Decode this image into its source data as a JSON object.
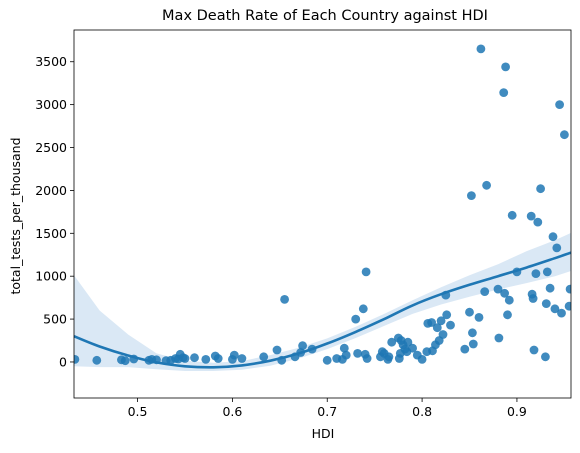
{
  "chart_data": {
    "type": "scatter",
    "title": "Max Death Rate of Each Country against HDI",
    "xlabel": "HDI",
    "ylabel": "total_tests_per_thousand",
    "xlim": [
      0.433,
      0.957
    ],
    "ylim": [
      -420,
      3870
    ],
    "xticks": [
      0.5,
      0.6,
      0.7,
      0.8,
      0.9
    ],
    "xtick_labels": [
      "0.5",
      "0.6",
      "0.7",
      "0.8",
      "0.9"
    ],
    "yticks": [
      0,
      500,
      1000,
      1500,
      2000,
      2500,
      3000,
      3500
    ],
    "ytick_labels": [
      "0",
      "500",
      "1000",
      "1500",
      "2000",
      "2500",
      "3000",
      "3500"
    ],
    "grid": false,
    "colors": {
      "points": "#1f77b4",
      "fit_line": "#1f77b4",
      "confidence_band": "#c6dbef"
    },
    "points": {
      "x": [
        0.434,
        0.457,
        0.483,
        0.487,
        0.496,
        0.512,
        0.515,
        0.52,
        0.53,
        0.535,
        0.54,
        0.543,
        0.545,
        0.548,
        0.55,
        0.56,
        0.572,
        0.582,
        0.585,
        0.6,
        0.602,
        0.61,
        0.633,
        0.647,
        0.652,
        0.655,
        0.666,
        0.672,
        0.674,
        0.684,
        0.7,
        0.71,
        0.716,
        0.718,
        0.72,
        0.73,
        0.732,
        0.738,
        0.74,
        0.741,
        0.742,
        0.756,
        0.758,
        0.76,
        0.764,
        0.765,
        0.768,
        0.775,
        0.776,
        0.777,
        0.778,
        0.78,
        0.782,
        0.784,
        0.785,
        0.79,
        0.795,
        0.8,
        0.805,
        0.806,
        0.81,
        0.811,
        0.814,
        0.816,
        0.818,
        0.82,
        0.822,
        0.825,
        0.826,
        0.83,
        0.845,
        0.85,
        0.852,
        0.853,
        0.854,
        0.86,
        0.862,
        0.866,
        0.868,
        0.88,
        0.881,
        0.886,
        0.887,
        0.888,
        0.89,
        0.892,
        0.895,
        0.9,
        0.915,
        0.916,
        0.917,
        0.918,
        0.92,
        0.922,
        0.925,
        0.93,
        0.931,
        0.932,
        0.935,
        0.938,
        0.94,
        0.942,
        0.945,
        0.947,
        0.95,
        0.955,
        0.956
      ],
      "y": [
        30,
        20,
        25,
        15,
        35,
        20,
        30,
        25,
        15,
        20,
        40,
        35,
        90,
        50,
        40,
        50,
        30,
        70,
        40,
        30,
        80,
        40,
        60,
        140,
        20,
        730,
        60,
        110,
        190,
        150,
        20,
        40,
        30,
        160,
        80,
        500,
        100,
        620,
        90,
        1050,
        40,
        60,
        120,
        100,
        30,
        60,
        230,
        280,
        40,
        100,
        250,
        200,
        150,
        120,
        230,
        160,
        80,
        30,
        120,
        450,
        460,
        130,
        200,
        400,
        250,
        480,
        320,
        780,
        550,
        430,
        150,
        580,
        1940,
        340,
        210,
        520,
        3650,
        820,
        2060,
        850,
        280,
        3140,
        800,
        3440,
        550,
        720,
        1710,
        1050,
        1700,
        790,
        740,
        140,
        1030,
        1630,
        2020,
        60,
        680,
        1050,
        860,
        1460,
        620,
        1330,
        3000,
        570,
        2650,
        650,
        850
      ],
      "labels": []
    },
    "regression": {
      "order": 2,
      "fit_x": [
        0.433,
        0.46,
        0.49,
        0.52,
        0.55,
        0.58,
        0.61,
        0.64,
        0.67,
        0.7,
        0.73,
        0.76,
        0.79,
        0.82,
        0.85,
        0.88,
        0.91,
        0.94,
        0.957
      ],
      "fit_y": [
        300,
        180,
        75,
        -5,
        -50,
        -62,
        -40,
        15,
        100,
        215,
        350,
        500,
        660,
        790,
        900,
        1000,
        1100,
        1210,
        1275
      ],
      "band_lower": [
        -50,
        -60,
        -60,
        -85,
        -105,
        -105,
        -90,
        -45,
        40,
        150,
        280,
        420,
        560,
        670,
        760,
        845,
        920,
        1000,
        1060
      ],
      "band_upper": [
        1010,
        600,
        320,
        100,
        15,
        -10,
        10,
        80,
        165,
        275,
        410,
        560,
        720,
        870,
        1010,
        1140,
        1290,
        1420,
        1505
      ]
    }
  }
}
